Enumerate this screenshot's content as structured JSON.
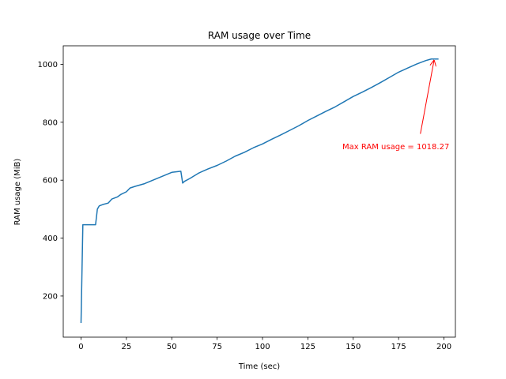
{
  "chart_data": {
    "type": "line",
    "title": "RAM usage over Time",
    "xlabel": "Time (sec)",
    "ylabel": "RAM usage (MiB)",
    "xlim": [
      -9.8,
      206.3
    ],
    "ylim": [
      58,
      1064
    ],
    "xticks": [
      0,
      25,
      50,
      75,
      100,
      125,
      150,
      175,
      200
    ],
    "yticks": [
      200,
      400,
      600,
      800,
      1000
    ],
    "grid": false,
    "line_color": "#1f77b4",
    "series": [
      {
        "x": [
          0,
          1,
          2,
          5,
          8,
          9,
          10,
          12,
          15,
          17,
          20,
          22,
          25,
          27,
          30,
          35,
          40,
          45,
          50,
          55,
          56,
          57,
          60,
          65,
          70,
          75,
          80,
          85,
          90,
          95,
          100,
          105,
          110,
          115,
          120,
          125,
          130,
          135,
          140,
          145,
          150,
          155,
          160,
          165,
          170,
          175,
          180,
          185,
          190,
          193,
          195,
          197
        ],
        "values": [
          107,
          446,
          446,
          446,
          446,
          500,
          511,
          516,
          521,
          535,
          542,
          551,
          560,
          573,
          579,
          588,
          601,
          614,
          627,
          631,
          590,
          596,
          606,
          625,
          639,
          651,
          666,
          683,
          696,
          712,
          725,
          741,
          756,
          772,
          788,
          806,
          822,
          838,
          853,
          871,
          889,
          904,
          920,
          937,
          955,
          973,
          987,
          1001,
          1013,
          1018.27,
          1018.27,
          1018.27
        ]
      }
    ],
    "annotation": {
      "text": "Max RAM usage = 1018.27",
      "color": "#ff0000",
      "point": [
        194.5,
        1018.27
      ],
      "text_pos": [
        144,
        718
      ]
    }
  }
}
